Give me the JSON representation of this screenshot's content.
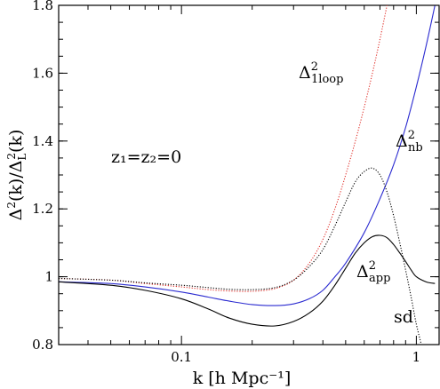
{
  "chart_data": {
    "type": "line",
    "xlabel": "k  [h Mpc⁻¹]",
    "ylabel": {
      "base": "Δ",
      "sup1": "2",
      "mid": "(k)/Δ",
      "sub": "L",
      "sup2": "2",
      "end": "(k)"
    },
    "x_scale": "log",
    "xlim": [
      0.03,
      1.25
    ],
    "ylim": [
      0.8,
      1.8
    ],
    "x_ticks": [
      {
        "value": 0.1,
        "label": "0.1"
      },
      {
        "value": 1,
        "label": "1"
      }
    ],
    "y_ticks": [
      {
        "value": 0.8,
        "label": "0.8"
      },
      {
        "value": 1.0,
        "label": "1"
      },
      {
        "value": 1.2,
        "label": "1.2"
      },
      {
        "value": 1.4,
        "label": "1.4"
      },
      {
        "value": 1.6,
        "label": "1.6"
      },
      {
        "value": 1.8,
        "label": "1.8"
      }
    ],
    "grid": false,
    "annotations": {
      "redshift": "z₁=z₂=0",
      "oneloop": {
        "base": "Δ",
        "sup": "2",
        "sub": "1loop"
      },
      "nb": {
        "base": "Δ",
        "sup": "2",
        "sub": "nb"
      },
      "app": {
        "base": "Δ",
        "sup": "2",
        "sub": "app"
      },
      "sd": "sd"
    },
    "series": [
      {
        "key": "oneloop",
        "color": "#e0302a",
        "style": "dotted",
        "x": [
          0.03,
          0.05,
          0.07,
          0.1,
          0.13,
          0.16,
          0.2,
          0.25,
          0.3,
          0.35,
          0.4,
          0.45,
          0.5,
          0.55,
          0.6,
          0.65,
          0.7,
          0.75
        ],
        "y": [
          0.995,
          0.99,
          0.98,
          0.97,
          0.962,
          0.958,
          0.957,
          0.965,
          0.99,
          1.04,
          1.11,
          1.2,
          1.3,
          1.4,
          1.5,
          1.6,
          1.7,
          1.8
        ]
      },
      {
        "key": "nb",
        "color": "#2a2ad0",
        "style": "solid",
        "x": [
          0.03,
          0.05,
          0.07,
          0.1,
          0.13,
          0.16,
          0.2,
          0.25,
          0.3,
          0.35,
          0.4,
          0.45,
          0.5,
          0.6,
          0.7,
          0.8,
          0.9,
          1.0,
          1.1,
          1.2
        ],
        "y": [
          0.985,
          0.98,
          0.97,
          0.955,
          0.94,
          0.928,
          0.918,
          0.915,
          0.92,
          0.935,
          0.96,
          1.0,
          1.04,
          1.13,
          1.23,
          1.33,
          1.44,
          1.56,
          1.68,
          1.8
        ]
      },
      {
        "key": "sd",
        "color": "#000000",
        "style": "dotted",
        "x": [
          0.03,
          0.05,
          0.07,
          0.1,
          0.13,
          0.16,
          0.2,
          0.25,
          0.3,
          0.35,
          0.4,
          0.45,
          0.5,
          0.55,
          0.6,
          0.65,
          0.7,
          0.75,
          0.8,
          0.85,
          0.9,
          0.95,
          1.0,
          1.05
        ],
        "y": [
          0.995,
          0.99,
          0.982,
          0.975,
          0.968,
          0.963,
          0.962,
          0.968,
          0.99,
          1.03,
          1.08,
          1.15,
          1.22,
          1.28,
          1.31,
          1.32,
          1.3,
          1.25,
          1.18,
          1.1,
          1.02,
          0.94,
          0.86,
          0.8
        ]
      },
      {
        "key": "app",
        "color": "#000000",
        "style": "solid",
        "x": [
          0.03,
          0.05,
          0.07,
          0.1,
          0.13,
          0.16,
          0.2,
          0.25,
          0.3,
          0.35,
          0.4,
          0.45,
          0.5,
          0.55,
          0.6,
          0.65,
          0.7,
          0.75,
          0.8,
          0.85,
          0.9,
          0.95,
          1.0,
          1.1,
          1.2
        ],
        "y": [
          0.985,
          0.975,
          0.96,
          0.935,
          0.905,
          0.878,
          0.86,
          0.855,
          0.868,
          0.893,
          0.928,
          0.975,
          1.025,
          1.07,
          1.1,
          1.118,
          1.122,
          1.115,
          1.095,
          1.07,
          1.045,
          1.02,
          1.0,
          0.985,
          0.98
        ]
      }
    ]
  }
}
